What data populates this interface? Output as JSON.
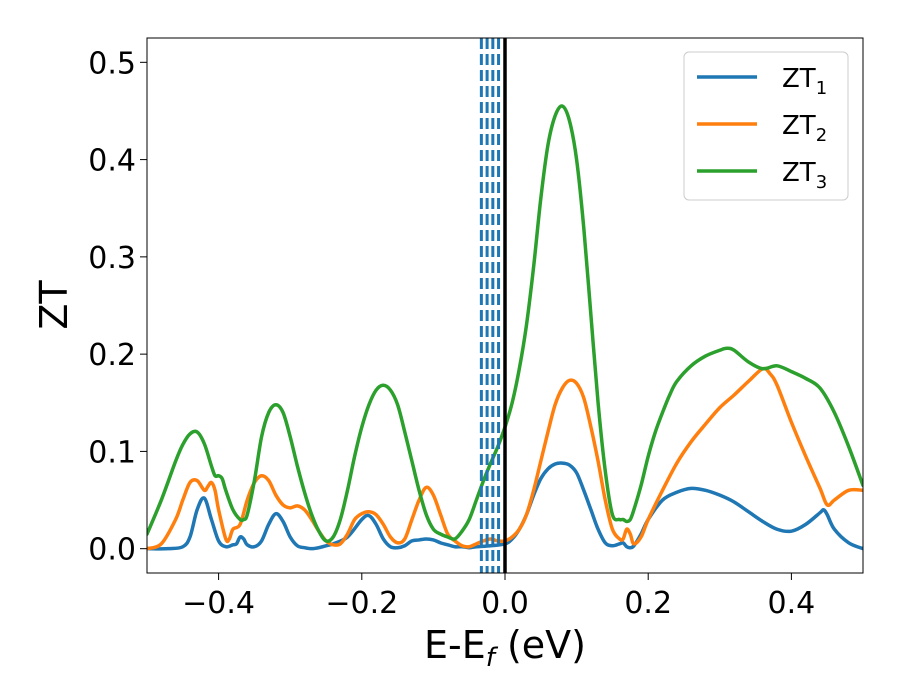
{
  "chart_data": {
    "type": "line",
    "xlabel_main": "E-E",
    "xlabel_sub": "f",
    "xlabel_unit": " (eV)",
    "ylabel": "ZT",
    "xlim": [
      -0.5,
      0.5
    ],
    "ylim": [
      -0.025,
      0.525
    ],
    "xticks": [
      -0.4,
      -0.2,
      0.0,
      0.2,
      0.4
    ],
    "xtick_labels": [
      "−0.4",
      "−0.2",
      "0.0",
      "0.2",
      "0.4"
    ],
    "yticks": [
      0.0,
      0.1,
      0.2,
      0.3,
      0.4,
      0.5
    ],
    "ytick_labels": [
      "0.0",
      "0.1",
      "0.2",
      "0.3",
      "0.4",
      "0.5"
    ],
    "legend_position": "top-right",
    "vertical_lines": [
      {
        "x": 0.0,
        "style": "solid",
        "color": "#000000"
      },
      {
        "x": -0.033,
        "style": "dashed",
        "color": "#1f77b4"
      },
      {
        "x": -0.025,
        "style": "dashed",
        "color": "#1f77b4"
      },
      {
        "x": -0.017,
        "style": "dashed",
        "color": "#1f77b4"
      },
      {
        "x": -0.009,
        "style": "dashed",
        "color": "#1f77b4"
      }
    ],
    "series": [
      {
        "name": "ZT",
        "sub": "1",
        "color": "#1f77b4",
        "x": [
          -0.5,
          -0.47,
          -0.45,
          -0.44,
          -0.43,
          -0.42,
          -0.41,
          -0.4,
          -0.39,
          -0.38,
          -0.375,
          -0.37,
          -0.365,
          -0.36,
          -0.35,
          -0.34,
          -0.33,
          -0.32,
          -0.31,
          -0.3,
          -0.29,
          -0.28,
          -0.27,
          -0.26,
          -0.25,
          -0.24,
          -0.22,
          -0.2,
          -0.19,
          -0.18,
          -0.17,
          -0.16,
          -0.15,
          -0.14,
          -0.13,
          -0.12,
          -0.11,
          -0.1,
          -0.09,
          -0.08,
          -0.07,
          -0.06,
          -0.05,
          -0.04,
          -0.02,
          0.0,
          0.01,
          0.02,
          0.03,
          0.04,
          0.05,
          0.06,
          0.07,
          0.08,
          0.09,
          0.1,
          0.11,
          0.12,
          0.13,
          0.14,
          0.15,
          0.16,
          0.165,
          0.17,
          0.175,
          0.18,
          0.19,
          0.2,
          0.22,
          0.24,
          0.26,
          0.28,
          0.3,
          0.32,
          0.34,
          0.36,
          0.38,
          0.4,
          0.42,
          0.44,
          0.445,
          0.45,
          0.46,
          0.48,
          0.5
        ],
        "values": [
          0.0,
          0.0,
          0.002,
          0.012,
          0.04,
          0.052,
          0.03,
          0.008,
          0.002,
          0.004,
          0.005,
          0.012,
          0.01,
          0.004,
          0.002,
          0.008,
          0.025,
          0.036,
          0.028,
          0.012,
          0.003,
          0.001,
          0.0,
          0.001,
          0.003,
          0.005,
          0.012,
          0.03,
          0.034,
          0.025,
          0.01,
          0.002,
          0.001,
          0.003,
          0.008,
          0.009,
          0.01,
          0.009,
          0.006,
          0.004,
          0.002,
          0.002,
          0.001,
          0.002,
          0.003,
          0.005,
          0.01,
          0.02,
          0.035,
          0.055,
          0.072,
          0.082,
          0.087,
          0.088,
          0.086,
          0.078,
          0.06,
          0.04,
          0.02,
          0.006,
          0.003,
          0.005,
          0.006,
          0.002,
          0.001,
          0.003,
          0.015,
          0.03,
          0.05,
          0.058,
          0.062,
          0.06,
          0.055,
          0.048,
          0.038,
          0.028,
          0.02,
          0.018,
          0.025,
          0.037,
          0.04,
          0.035,
          0.02,
          0.006,
          0.0
        ]
      },
      {
        "name": "ZT",
        "sub": "2",
        "color": "#ff7f0e",
        "x": [
          -0.5,
          -0.48,
          -0.46,
          -0.45,
          -0.44,
          -0.43,
          -0.42,
          -0.415,
          -0.41,
          -0.405,
          -0.4,
          -0.39,
          -0.385,
          -0.38,
          -0.37,
          -0.36,
          -0.35,
          -0.34,
          -0.33,
          -0.32,
          -0.31,
          -0.3,
          -0.29,
          -0.28,
          -0.27,
          -0.26,
          -0.25,
          -0.24,
          -0.23,
          -0.22,
          -0.21,
          -0.2,
          -0.19,
          -0.18,
          -0.17,
          -0.16,
          -0.15,
          -0.14,
          -0.13,
          -0.12,
          -0.11,
          -0.1,
          -0.09,
          -0.08,
          -0.07,
          -0.06,
          -0.05,
          -0.04,
          -0.03,
          -0.02,
          -0.01,
          0.0,
          0.01,
          0.02,
          0.03,
          0.04,
          0.05,
          0.06,
          0.07,
          0.08,
          0.09,
          0.1,
          0.11,
          0.12,
          0.13,
          0.14,
          0.15,
          0.16,
          0.165,
          0.17,
          0.175,
          0.18,
          0.19,
          0.2,
          0.22,
          0.24,
          0.26,
          0.28,
          0.3,
          0.32,
          0.34,
          0.36,
          0.37,
          0.38,
          0.4,
          0.42,
          0.44,
          0.45,
          0.46,
          0.48,
          0.5
        ],
        "values": [
          0.0,
          0.005,
          0.03,
          0.05,
          0.068,
          0.07,
          0.06,
          0.064,
          0.068,
          0.06,
          0.04,
          0.01,
          0.01,
          0.02,
          0.025,
          0.05,
          0.068,
          0.075,
          0.07,
          0.055,
          0.045,
          0.042,
          0.044,
          0.04,
          0.03,
          0.018,
          0.008,
          0.004,
          0.005,
          0.015,
          0.03,
          0.036,
          0.038,
          0.035,
          0.025,
          0.012,
          0.006,
          0.01,
          0.03,
          0.05,
          0.063,
          0.055,
          0.035,
          0.015,
          0.008,
          0.003,
          0.002,
          0.005,
          0.008,
          0.01,
          0.008,
          0.008,
          0.012,
          0.02,
          0.035,
          0.06,
          0.09,
          0.12,
          0.148,
          0.165,
          0.173,
          0.17,
          0.155,
          0.125,
          0.09,
          0.05,
          0.02,
          0.01,
          0.01,
          0.02,
          0.015,
          0.005,
          0.012,
          0.03,
          0.06,
          0.088,
          0.11,
          0.128,
          0.145,
          0.158,
          0.172,
          0.185,
          0.18,
          0.168,
          0.13,
          0.095,
          0.062,
          0.045,
          0.05,
          0.06,
          0.06
        ]
      },
      {
        "name": "ZT",
        "sub": "3",
        "color": "#2ca02c",
        "x": [
          -0.5,
          -0.48,
          -0.46,
          -0.45,
          -0.44,
          -0.43,
          -0.42,
          -0.41,
          -0.405,
          -0.4,
          -0.395,
          -0.39,
          -0.38,
          -0.37,
          -0.365,
          -0.36,
          -0.35,
          -0.34,
          -0.33,
          -0.32,
          -0.31,
          -0.3,
          -0.29,
          -0.28,
          -0.27,
          -0.26,
          -0.25,
          -0.24,
          -0.23,
          -0.22,
          -0.21,
          -0.2,
          -0.19,
          -0.18,
          -0.17,
          -0.16,
          -0.15,
          -0.14,
          -0.13,
          -0.12,
          -0.11,
          -0.1,
          -0.09,
          -0.08,
          -0.07,
          -0.06,
          -0.05,
          -0.04,
          -0.03,
          -0.02,
          -0.01,
          0.0,
          0.01,
          0.02,
          0.03,
          0.04,
          0.05,
          0.06,
          0.07,
          0.08,
          0.09,
          0.1,
          0.11,
          0.12,
          0.13,
          0.14,
          0.15,
          0.16,
          0.165,
          0.17,
          0.175,
          0.18,
          0.19,
          0.2,
          0.21,
          0.22,
          0.23,
          0.24,
          0.26,
          0.28,
          0.3,
          0.31,
          0.32,
          0.34,
          0.36,
          0.38,
          0.4,
          0.42,
          0.44,
          0.46,
          0.48,
          0.5
        ],
        "values": [
          0.015,
          0.05,
          0.09,
          0.107,
          0.118,
          0.12,
          0.108,
          0.085,
          0.075,
          0.075,
          0.072,
          0.06,
          0.04,
          0.03,
          0.03,
          0.035,
          0.07,
          0.115,
          0.14,
          0.148,
          0.14,
          0.115,
          0.085,
          0.058,
          0.035,
          0.018,
          0.008,
          0.012,
          0.03,
          0.06,
          0.095,
          0.125,
          0.148,
          0.163,
          0.168,
          0.163,
          0.148,
          0.12,
          0.09,
          0.06,
          0.035,
          0.02,
          0.015,
          0.012,
          0.01,
          0.018,
          0.03,
          0.05,
          0.07,
          0.088,
          0.105,
          0.125,
          0.15,
          0.185,
          0.23,
          0.29,
          0.36,
          0.415,
          0.445,
          0.455,
          0.44,
          0.4,
          0.33,
          0.24,
          0.15,
          0.08,
          0.035,
          0.03,
          0.03,
          0.028,
          0.03,
          0.04,
          0.065,
          0.095,
          0.12,
          0.14,
          0.158,
          0.172,
          0.188,
          0.198,
          0.204,
          0.206,
          0.204,
          0.192,
          0.185,
          0.188,
          0.182,
          0.175,
          0.165,
          0.14,
          0.105,
          0.065
        ]
      }
    ]
  }
}
